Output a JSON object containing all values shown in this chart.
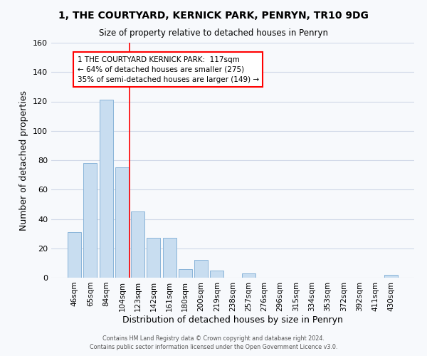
{
  "title_line1": "1, THE COURTYARD, KERNICK PARK, PENRYN, TR10 9DG",
  "title_line2": "Size of property relative to detached houses in Penryn",
  "xlabel": "Distribution of detached houses by size in Penryn",
  "ylabel": "Number of detached properties",
  "categories": [
    "46sqm",
    "65sqm",
    "84sqm",
    "104sqm",
    "123sqm",
    "142sqm",
    "161sqm",
    "180sqm",
    "200sqm",
    "219sqm",
    "238sqm",
    "257sqm",
    "276sqm",
    "296sqm",
    "315sqm",
    "334sqm",
    "353sqm",
    "372sqm",
    "392sqm",
    "411sqm",
    "430sqm"
  ],
  "values": [
    31,
    78,
    121,
    75,
    45,
    27,
    27,
    6,
    12,
    5,
    0,
    3,
    0,
    0,
    0,
    0,
    0,
    0,
    0,
    0,
    2
  ],
  "bar_color": "#c8ddf0",
  "bar_edge_color": "#89b4d9",
  "ylim": [
    0,
    160
  ],
  "yticks": [
    0,
    20,
    40,
    60,
    80,
    100,
    120,
    140,
    160
  ],
  "annotation_title": "1 THE COURTYARD KERNICK PARK:  117sqm",
  "annotation_line2": "← 64% of detached houses are smaller (275)",
  "annotation_line3": "35% of semi-detached houses are larger (149) →",
  "footer_line1": "Contains HM Land Registry data © Crown copyright and database right 2024.",
  "footer_line2": "Contains public sector information licensed under the Open Government Licence v3.0.",
  "grid_color": "#d0d8e8",
  "background_color": "#f7f9fc"
}
